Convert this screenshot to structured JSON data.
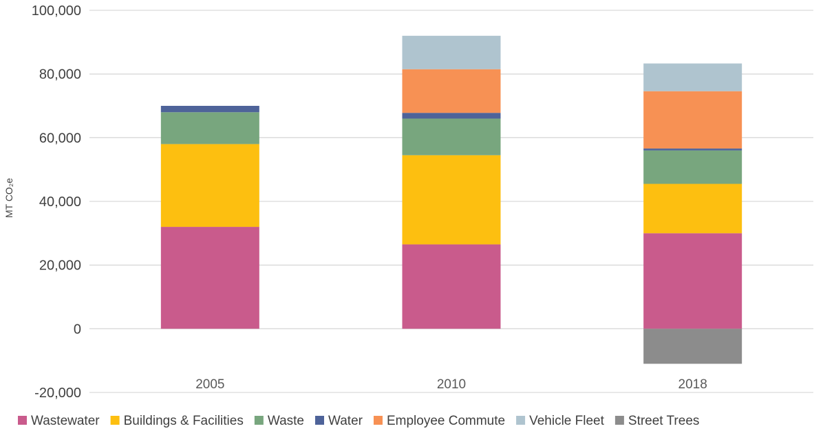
{
  "chart_data": {
    "type": "bar",
    "stacked": true,
    "categories": [
      "2005",
      "2010",
      "2018"
    ],
    "ylabel": "MT CO₂e",
    "ylim": [
      -20000,
      100000
    ],
    "yticks": [
      -20000,
      0,
      20000,
      40000,
      60000,
      80000,
      100000
    ],
    "ytick_labels": [
      "-20,000",
      "0",
      "20,000",
      "40,000",
      "60,000",
      "80,000",
      "100,000"
    ],
    "grid": true,
    "legend_position": "bottom",
    "series": [
      {
        "name": "Wastewater",
        "color": "#C95B8C",
        "values": [
          32000,
          26500,
          30000
        ]
      },
      {
        "name": "Buildings & Facilities",
        "color": "#FDBF10",
        "values": [
          26000,
          28000,
          15500
        ]
      },
      {
        "name": "Waste",
        "color": "#78A67E",
        "values": [
          10000,
          11500,
          10500
        ]
      },
      {
        "name": "Water",
        "color": "#4E6399",
        "values": [
          2000,
          1800,
          600
        ]
      },
      {
        "name": "Employee Commute",
        "color": "#F79154",
        "values": [
          0,
          13700,
          18000
        ]
      },
      {
        "name": "Vehicle Fleet",
        "color": "#AFC4CF",
        "values": [
          0,
          10500,
          8700
        ]
      },
      {
        "name": "Street Trees",
        "color": "#8C8C8C",
        "values": [
          0,
          0,
          -11000
        ]
      }
    ]
  }
}
